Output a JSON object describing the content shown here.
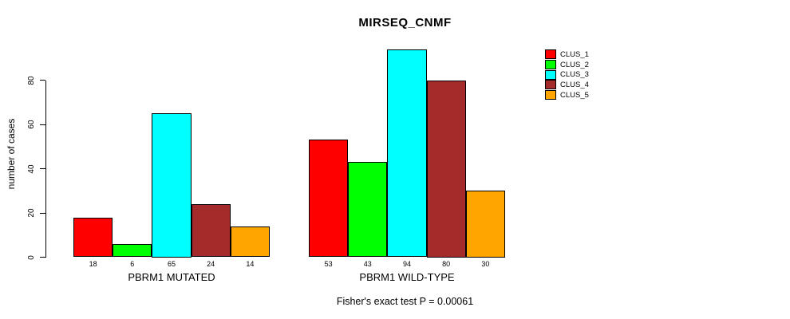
{
  "chart_data": {
    "type": "bar",
    "title": "MIRSEQ_CNMF",
    "xlabel": "",
    "ylabel": "number of cases",
    "categories": [
      "PBRM1 MUTATED",
      "PBRM1 WILD-TYPE"
    ],
    "series": [
      {
        "name": "CLUS_1",
        "color": "#ff0000",
        "values": [
          18,
          53
        ]
      },
      {
        "name": "CLUS_2",
        "color": "#00ff00",
        "values": [
          6,
          43
        ]
      },
      {
        "name": "CLUS_3",
        "color": "#00ffff",
        "values": [
          65,
          94
        ]
      },
      {
        "name": "CLUS_4",
        "color": "#a52a2a",
        "values": [
          24,
          80
        ]
      },
      {
        "name": "CLUS_5",
        "color": "#ffa500",
        "values": [
          14,
          30
        ]
      }
    ],
    "yticks": [
      0,
      20,
      40,
      60,
      80
    ],
    "ylim": [
      0,
      95
    ],
    "grid": false,
    "legend_position": "right",
    "bar_value_labels_shown": true,
    "annotation": "Fisher's exact test P = 0.00061"
  }
}
